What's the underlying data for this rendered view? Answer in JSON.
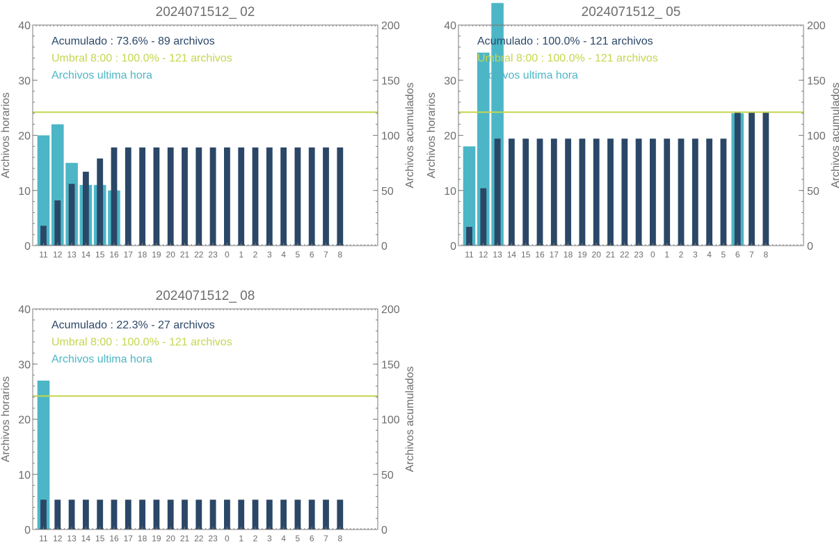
{
  "colors": {
    "hourly": "#4cb6c6",
    "cumulative": "#2b4767",
    "threshold": "#c5d64f"
  },
  "chart_data": [
    {
      "type": "bar",
      "title": "2024071512_ 02",
      "ylabel_left": "Archivos horarios",
      "ylabel_right": "Archivos acumulados",
      "ylim_left": [
        0,
        40
      ],
      "ylim_right": [
        0,
        200
      ],
      "yticks_left": [
        "0",
        "10",
        "20",
        "30",
        "40"
      ],
      "yticks_right": [
        "0",
        "50",
        "100",
        "150",
        "200"
      ],
      "categories": [
        "11",
        "12",
        "13",
        "14",
        "15",
        "16",
        "17",
        "18",
        "19",
        "20",
        "21",
        "22",
        "23",
        "0",
        "1",
        "2",
        "3",
        "4",
        "5",
        "6",
        "7",
        "8"
      ],
      "series": [
        {
          "name": "Archivos ultima hora",
          "axis": "left",
          "values": [
            20,
            22,
            15,
            11,
            11,
            10,
            0,
            0,
            0,
            0,
            0,
            0,
            0,
            0,
            0,
            0,
            0,
            0,
            0,
            0,
            0,
            0
          ]
        },
        {
          "name": "Acumulado",
          "axis": "right",
          "values": [
            18,
            41,
            56,
            67,
            79,
            89,
            89,
            89,
            89,
            89,
            89,
            89,
            89,
            89,
            89,
            89,
            89,
            89,
            89,
            89,
            89,
            89
          ]
        }
      ],
      "threshold_value": 121,
      "legend": [
        {
          "text": "Acumulado : 73.6% - 89 archivos",
          "role": "cumulative"
        },
        {
          "text": "Umbral 8:00 : 100.0% - 121 archivos",
          "role": "threshold"
        },
        {
          "text": "Archivos ultima hora",
          "role": "hourly"
        }
      ]
    },
    {
      "type": "bar",
      "title": "2024071512_ 05",
      "ylabel_left": "Archivos horarios",
      "ylabel_right": "Archivos acumulados",
      "ylim_left": [
        0,
        40
      ],
      "ylim_right": [
        0,
        200
      ],
      "yticks_left": [
        "0",
        "10",
        "20",
        "30",
        "40"
      ],
      "yticks_right": [
        "0",
        "50",
        "100",
        "150",
        "200"
      ],
      "categories": [
        "11",
        "12",
        "13",
        "14",
        "15",
        "16",
        "17",
        "18",
        "19",
        "20",
        "21",
        "22",
        "23",
        "0",
        "1",
        "2",
        "3",
        "4",
        "5",
        "6",
        "7",
        "8"
      ],
      "series": [
        {
          "name": "Archivos ultima hora",
          "axis": "left",
          "values": [
            18,
            35,
            44,
            0,
            0,
            0,
            0,
            0,
            0,
            0,
            0,
            0,
            0,
            0,
            0,
            0,
            0,
            0,
            0,
            24,
            0,
            0
          ]
        },
        {
          "name": "Acumulado",
          "axis": "right",
          "values": [
            17,
            52,
            97,
            97,
            97,
            97,
            97,
            97,
            97,
            97,
            97,
            97,
            97,
            97,
            97,
            97,
            97,
            97,
            97,
            121,
            121,
            121
          ]
        }
      ],
      "threshold_value": 121,
      "legend": [
        {
          "text": "Acumulado : 100.0% - 121 archivos",
          "role": "cumulative"
        },
        {
          "text": "Umbral 8:00 : 100.0% - 121 archivos",
          "role": "threshold"
        },
        {
          "text": "Archivos ultima hora",
          "role": "hourly"
        }
      ]
    },
    {
      "type": "bar",
      "title": "2024071512_ 08",
      "ylabel_left": "Archivos horarios",
      "ylabel_right": "Archivos acumulados",
      "ylim_left": [
        0,
        40
      ],
      "ylim_right": [
        0,
        200
      ],
      "yticks_left": [
        "0",
        "10",
        "20",
        "30",
        "40"
      ],
      "yticks_right": [
        "0",
        "50",
        "100",
        "150",
        "200"
      ],
      "categories": [
        "11",
        "12",
        "13",
        "14",
        "15",
        "16",
        "17",
        "18",
        "19",
        "20",
        "21",
        "22",
        "23",
        "0",
        "1",
        "2",
        "3",
        "4",
        "5",
        "6",
        "7",
        "8"
      ],
      "series": [
        {
          "name": "Archivos ultima hora",
          "axis": "left",
          "values": [
            27,
            0,
            0,
            0,
            0,
            0,
            0,
            0,
            0,
            0,
            0,
            0,
            0,
            0,
            0,
            0,
            0,
            0,
            0,
            0,
            0,
            0
          ]
        },
        {
          "name": "Acumulado",
          "axis": "right",
          "values": [
            27,
            27,
            27,
            27,
            27,
            27,
            27,
            27,
            27,
            27,
            27,
            27,
            27,
            27,
            27,
            27,
            27,
            27,
            27,
            27,
            27,
            27
          ]
        }
      ],
      "threshold_value": 121,
      "legend": [
        {
          "text": "Acumulado : 22.3% - 27 archivos",
          "role": "cumulative"
        },
        {
          "text": "Umbral 8:00 : 100.0% - 121 archivos",
          "role": "threshold"
        },
        {
          "text": "Archivos ultima hora",
          "role": "hourly"
        }
      ]
    }
  ]
}
